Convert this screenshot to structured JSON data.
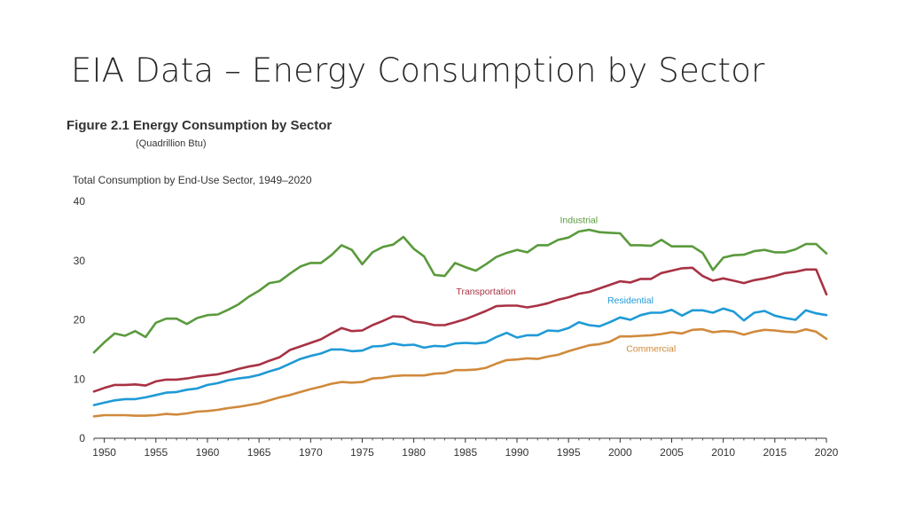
{
  "slide": {
    "title": "EIA Data – Energy Consumption by Sector"
  },
  "figure": {
    "caption": "Figure 2.1  Energy Consumption by Sector",
    "unit": "(Quadrillion Btu)",
    "subtitle": "Total Consumption by End-Use Sector, 1949–2020"
  },
  "colors": {
    "industrial": "#5a9a3c",
    "transportation": "#a83244",
    "residential": "#1f9ad6",
    "commercial": "#d08a3c",
    "axis": "#333333"
  },
  "chart_data": {
    "type": "line",
    "title": "Total Consumption by End-Use Sector, 1949–2020",
    "xlabel": "",
    "ylabel": "Quadrillion Btu",
    "xlim": [
      1949,
      2020
    ],
    "ylim": [
      0,
      40
    ],
    "x_ticks": [
      "1950",
      "1955",
      "1960",
      "1965",
      "1970",
      "1975",
      "1980",
      "1985",
      "1990",
      "1995",
      "2000",
      "2005",
      "2010",
      "2015",
      "2020"
    ],
    "y_ticks": [
      "0",
      "10",
      "20",
      "30",
      "40"
    ],
    "grid": false,
    "series": [
      {
        "name": "Industrial",
        "color": "#5a9a3c",
        "points": [
          [
            1949,
            14.5
          ],
          [
            1950,
            16.2
          ],
          [
            1951,
            17.7
          ],
          [
            1952,
            17.3
          ],
          [
            1953,
            18.1
          ],
          [
            1954,
            17.1
          ],
          [
            1955,
            19.5
          ],
          [
            1956,
            20.2
          ],
          [
            1957,
            20.2
          ],
          [
            1958,
            19.3
          ],
          [
            1959,
            20.3
          ],
          [
            1960,
            20.8
          ],
          [
            1961,
            20.9
          ],
          [
            1962,
            21.7
          ],
          [
            1963,
            22.6
          ],
          [
            1964,
            23.9
          ],
          [
            1965,
            24.9
          ],
          [
            1966,
            26.2
          ],
          [
            1967,
            26.5
          ],
          [
            1968,
            27.8
          ],
          [
            1969,
            29.0
          ],
          [
            1970,
            29.6
          ],
          [
            1971,
            29.6
          ],
          [
            1972,
            30.9
          ],
          [
            1973,
            32.6
          ],
          [
            1974,
            31.8
          ],
          [
            1975,
            29.4
          ],
          [
            1976,
            31.4
          ],
          [
            1977,
            32.3
          ],
          [
            1978,
            32.7
          ],
          [
            1979,
            34.0
          ],
          [
            1980,
            32.0
          ],
          [
            1981,
            30.7
          ],
          [
            1982,
            27.6
          ],
          [
            1983,
            27.4
          ],
          [
            1984,
            29.6
          ],
          [
            1985,
            28.9
          ],
          [
            1986,
            28.3
          ],
          [
            1987,
            29.4
          ],
          [
            1988,
            30.6
          ],
          [
            1989,
            31.3
          ],
          [
            1990,
            31.8
          ],
          [
            1991,
            31.4
          ],
          [
            1992,
            32.6
          ],
          [
            1993,
            32.6
          ],
          [
            1994,
            33.5
          ],
          [
            1995,
            33.9
          ],
          [
            1996,
            34.9
          ],
          [
            1997,
            35.2
          ],
          [
            1998,
            34.8
          ],
          [
            1999,
            34.7
          ],
          [
            2000,
            34.6
          ],
          [
            2001,
            32.6
          ],
          [
            2002,
            32.6
          ],
          [
            2003,
            32.5
          ],
          [
            2004,
            33.5
          ],
          [
            2005,
            32.4
          ],
          [
            2006,
            32.4
          ],
          [
            2007,
            32.4
          ],
          [
            2008,
            31.3
          ],
          [
            2009,
            28.4
          ],
          [
            2010,
            30.5
          ],
          [
            2011,
            30.9
          ],
          [
            2012,
            31.0
          ],
          [
            2013,
            31.6
          ],
          [
            2014,
            31.8
          ],
          [
            2015,
            31.4
          ],
          [
            2016,
            31.4
          ],
          [
            2017,
            31.9
          ],
          [
            2018,
            32.8
          ],
          [
            2019,
            32.8
          ],
          [
            2020,
            31.2
          ]
        ],
        "label": "Industrial",
        "label_at": [
          1996,
          36.3
        ]
      },
      {
        "name": "Transportation",
        "color": "#a83244",
        "points": [
          [
            1949,
            7.9
          ],
          [
            1950,
            8.5
          ],
          [
            1951,
            9.0
          ],
          [
            1952,
            9.0
          ],
          [
            1953,
            9.1
          ],
          [
            1954,
            8.9
          ],
          [
            1955,
            9.6
          ],
          [
            1956,
            9.9
          ],
          [
            1957,
            9.9
          ],
          [
            1958,
            10.1
          ],
          [
            1959,
            10.4
          ],
          [
            1960,
            10.6
          ],
          [
            1961,
            10.8
          ],
          [
            1962,
            11.2
          ],
          [
            1963,
            11.7
          ],
          [
            1964,
            12.1
          ],
          [
            1965,
            12.4
          ],
          [
            1966,
            13.1
          ],
          [
            1967,
            13.7
          ],
          [
            1968,
            14.9
          ],
          [
            1969,
            15.5
          ],
          [
            1970,
            16.1
          ],
          [
            1971,
            16.7
          ],
          [
            1972,
            17.7
          ],
          [
            1973,
            18.6
          ],
          [
            1974,
            18.1
          ],
          [
            1975,
            18.2
          ],
          [
            1976,
            19.1
          ],
          [
            1977,
            19.8
          ],
          [
            1978,
            20.6
          ],
          [
            1979,
            20.5
          ],
          [
            1980,
            19.7
          ],
          [
            1981,
            19.5
          ],
          [
            1982,
            19.1
          ],
          [
            1983,
            19.1
          ],
          [
            1984,
            19.6
          ],
          [
            1985,
            20.1
          ],
          [
            1986,
            20.8
          ],
          [
            1987,
            21.5
          ],
          [
            1988,
            22.3
          ],
          [
            1989,
            22.4
          ],
          [
            1990,
            22.4
          ],
          [
            1991,
            22.1
          ],
          [
            1992,
            22.4
          ],
          [
            1993,
            22.8
          ],
          [
            1994,
            23.4
          ],
          [
            1995,
            23.8
          ],
          [
            1996,
            24.4
          ],
          [
            1997,
            24.7
          ],
          [
            1998,
            25.3
          ],
          [
            1999,
            25.9
          ],
          [
            2000,
            26.5
          ],
          [
            2001,
            26.3
          ],
          [
            2002,
            26.9
          ],
          [
            2003,
            26.9
          ],
          [
            2004,
            27.9
          ],
          [
            2005,
            28.3
          ],
          [
            2006,
            28.7
          ],
          [
            2007,
            28.8
          ],
          [
            2008,
            27.4
          ],
          [
            2009,
            26.6
          ],
          [
            2010,
            27.0
          ],
          [
            2011,
            26.6
          ],
          [
            2012,
            26.2
          ],
          [
            2013,
            26.7
          ],
          [
            2014,
            27.0
          ],
          [
            2015,
            27.4
          ],
          [
            2016,
            27.9
          ],
          [
            2017,
            28.1
          ],
          [
            2018,
            28.5
          ],
          [
            2019,
            28.5
          ],
          [
            2020,
            24.3
          ]
        ],
        "label": "Transportation",
        "label_at": [
          1987,
          24.3
        ]
      },
      {
        "name": "Residential",
        "color": "#1f9ad6",
        "points": [
          [
            1949,
            5.6
          ],
          [
            1950,
            6.0
          ],
          [
            1951,
            6.4
          ],
          [
            1952,
            6.6
          ],
          [
            1953,
            6.6
          ],
          [
            1954,
            6.9
          ],
          [
            1955,
            7.3
          ],
          [
            1956,
            7.7
          ],
          [
            1957,
            7.8
          ],
          [
            1958,
            8.2
          ],
          [
            1959,
            8.4
          ],
          [
            1960,
            9.0
          ],
          [
            1961,
            9.3
          ],
          [
            1962,
            9.8
          ],
          [
            1963,
            10.1
          ],
          [
            1964,
            10.3
          ],
          [
            1965,
            10.7
          ],
          [
            1966,
            11.3
          ],
          [
            1967,
            11.8
          ],
          [
            1968,
            12.6
          ],
          [
            1969,
            13.4
          ],
          [
            1970,
            13.9
          ],
          [
            1971,
            14.3
          ],
          [
            1972,
            15.0
          ],
          [
            1973,
            15.0
          ],
          [
            1974,
            14.7
          ],
          [
            1975,
            14.8
          ],
          [
            1976,
            15.5
          ],
          [
            1977,
            15.6
          ],
          [
            1978,
            16.0
          ],
          [
            1979,
            15.7
          ],
          [
            1980,
            15.8
          ],
          [
            1981,
            15.3
          ],
          [
            1982,
            15.6
          ],
          [
            1983,
            15.5
          ],
          [
            1984,
            16.0
          ],
          [
            1985,
            16.1
          ],
          [
            1986,
            16.0
          ],
          [
            1987,
            16.2
          ],
          [
            1988,
            17.1
          ],
          [
            1989,
            17.8
          ],
          [
            1990,
            17.0
          ],
          [
            1991,
            17.4
          ],
          [
            1992,
            17.4
          ],
          [
            1993,
            18.2
          ],
          [
            1994,
            18.1
          ],
          [
            1995,
            18.6
          ],
          [
            1996,
            19.6
          ],
          [
            1997,
            19.1
          ],
          [
            1998,
            18.9
          ],
          [
            1999,
            19.6
          ],
          [
            2000,
            20.4
          ],
          [
            2001,
            20.0
          ],
          [
            2002,
            20.8
          ],
          [
            2003,
            21.2
          ],
          [
            2004,
            21.2
          ],
          [
            2005,
            21.7
          ],
          [
            2006,
            20.7
          ],
          [
            2007,
            21.6
          ],
          [
            2008,
            21.6
          ],
          [
            2009,
            21.2
          ],
          [
            2010,
            21.9
          ],
          [
            2011,
            21.4
          ],
          [
            2012,
            19.9
          ],
          [
            2013,
            21.2
          ],
          [
            2014,
            21.5
          ],
          [
            2015,
            20.7
          ],
          [
            2016,
            20.3
          ],
          [
            2017,
            20.0
          ],
          [
            2018,
            21.6
          ],
          [
            2019,
            21.1
          ],
          [
            2020,
            20.8
          ]
        ],
        "label": "Residential",
        "label_at": [
          2001,
          22.8
        ]
      },
      {
        "name": "Commercial",
        "color": "#d08a3c",
        "points": [
          [
            1949,
            3.7
          ],
          [
            1950,
            3.9
          ],
          [
            1951,
            3.9
          ],
          [
            1952,
            3.9
          ],
          [
            1953,
            3.8
          ],
          [
            1954,
            3.8
          ],
          [
            1955,
            3.9
          ],
          [
            1956,
            4.1
          ],
          [
            1957,
            4.0
          ],
          [
            1958,
            4.2
          ],
          [
            1959,
            4.5
          ],
          [
            1960,
            4.6
          ],
          [
            1961,
            4.8
          ],
          [
            1962,
            5.1
          ],
          [
            1963,
            5.3
          ],
          [
            1964,
            5.6
          ],
          [
            1965,
            5.9
          ],
          [
            1966,
            6.4
          ],
          [
            1967,
            6.9
          ],
          [
            1968,
            7.3
          ],
          [
            1969,
            7.8
          ],
          [
            1970,
            8.3
          ],
          [
            1971,
            8.7
          ],
          [
            1972,
            9.2
          ],
          [
            1973,
            9.5
          ],
          [
            1974,
            9.4
          ],
          [
            1975,
            9.5
          ],
          [
            1976,
            10.1
          ],
          [
            1977,
            10.2
          ],
          [
            1978,
            10.5
          ],
          [
            1979,
            10.6
          ],
          [
            1980,
            10.6
          ],
          [
            1981,
            10.6
          ],
          [
            1982,
            10.9
          ],
          [
            1983,
            11.0
          ],
          [
            1984,
            11.5
          ],
          [
            1985,
            11.5
          ],
          [
            1986,
            11.6
          ],
          [
            1987,
            11.9
          ],
          [
            1988,
            12.6
          ],
          [
            1989,
            13.2
          ],
          [
            1990,
            13.3
          ],
          [
            1991,
            13.5
          ],
          [
            1992,
            13.4
          ],
          [
            1993,
            13.8
          ],
          [
            1994,
            14.1
          ],
          [
            1995,
            14.7
          ],
          [
            1996,
            15.2
          ],
          [
            1997,
            15.7
          ],
          [
            1998,
            15.9
          ],
          [
            1999,
            16.3
          ],
          [
            2000,
            17.2
          ],
          [
            2001,
            17.2
          ],
          [
            2002,
            17.3
          ],
          [
            2003,
            17.4
          ],
          [
            2004,
            17.6
          ],
          [
            2005,
            17.9
          ],
          [
            2006,
            17.7
          ],
          [
            2007,
            18.3
          ],
          [
            2008,
            18.4
          ],
          [
            2009,
            17.9
          ],
          [
            2010,
            18.1
          ],
          [
            2011,
            18.0
          ],
          [
            2012,
            17.5
          ],
          [
            2013,
            18.0
          ],
          [
            2014,
            18.3
          ],
          [
            2015,
            18.2
          ],
          [
            2016,
            18.0
          ],
          [
            2017,
            17.9
          ],
          [
            2018,
            18.4
          ],
          [
            2019,
            18.0
          ],
          [
            2020,
            16.8
          ]
        ],
        "label": "Commercial",
        "label_at": [
          2003,
          14.6
        ]
      }
    ]
  }
}
